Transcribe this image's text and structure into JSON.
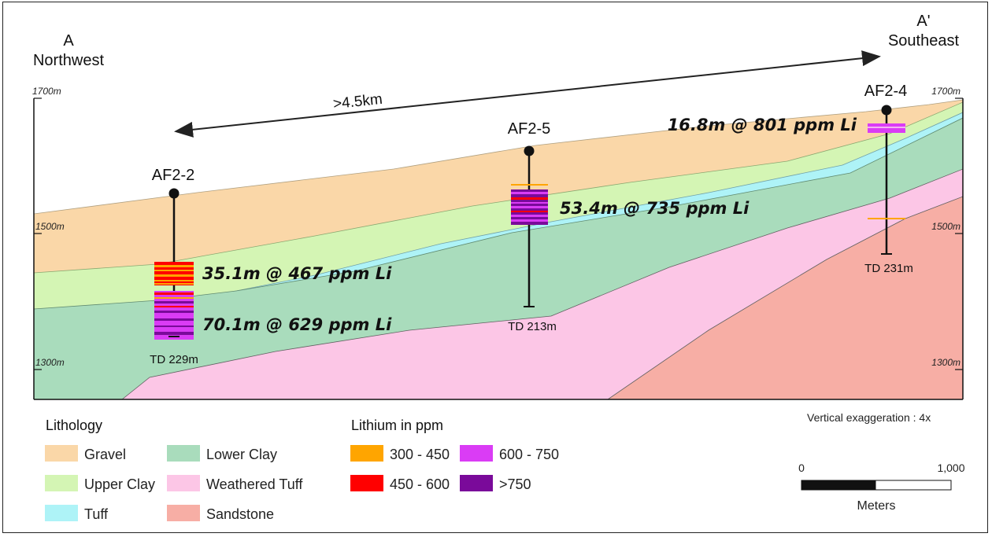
{
  "section": {
    "start_label": "A",
    "start_direction": "Northwest",
    "end_label": "A'",
    "end_direction": "Southeast",
    "distance_label": ">4.5km"
  },
  "elevation_labels": {
    "left": [
      "1700m",
      "1500m",
      "1300m"
    ],
    "right": [
      "1700m",
      "1500m",
      "1300m"
    ]
  },
  "drillholes": [
    {
      "id": "AF2-2",
      "td": "TD 229m",
      "intercepts": [
        "35.1m @ 467 ppm Li",
        "70.1m @ 629 ppm Li"
      ]
    },
    {
      "id": "AF2-5",
      "td": "TD 213m",
      "intercepts": [
        "53.4m @ 735 ppm Li"
      ]
    },
    {
      "id": "AF2-4",
      "td": "TD 231m",
      "intercepts": [
        "16.8m @ 801 ppm Li"
      ]
    }
  ],
  "legend_lithology": {
    "title": "Lithology",
    "items": [
      {
        "label": "Gravel",
        "color": "#fad7a8"
      },
      {
        "label": "Upper Clay",
        "color": "#d4f5b4"
      },
      {
        "label": "Tuff",
        "color": "#aef3f7"
      },
      {
        "label": "Lower Clay",
        "color": "#a9dcbc"
      },
      {
        "label": "Weathered Tuff",
        "color": "#fcc6e6"
      },
      {
        "label": "Sandstone",
        "color": "#f7aea5"
      }
    ]
  },
  "legend_lithium": {
    "title": "Lithium in ppm",
    "items": [
      {
        "label": "300 - 450",
        "color": "#ffa500"
      },
      {
        "label": "450 - 600",
        "color": "#ff0000"
      },
      {
        "label": "600 - 750",
        "color": "#da3cf5"
      },
      {
        "label": ">750",
        "color": "#7a0a9a"
      }
    ]
  },
  "vertical_exaggeration": "Vertical exaggeration : 4x",
  "scale_bar": {
    "min_label": "0",
    "max_label": "1,000",
    "unit": "Meters"
  }
}
